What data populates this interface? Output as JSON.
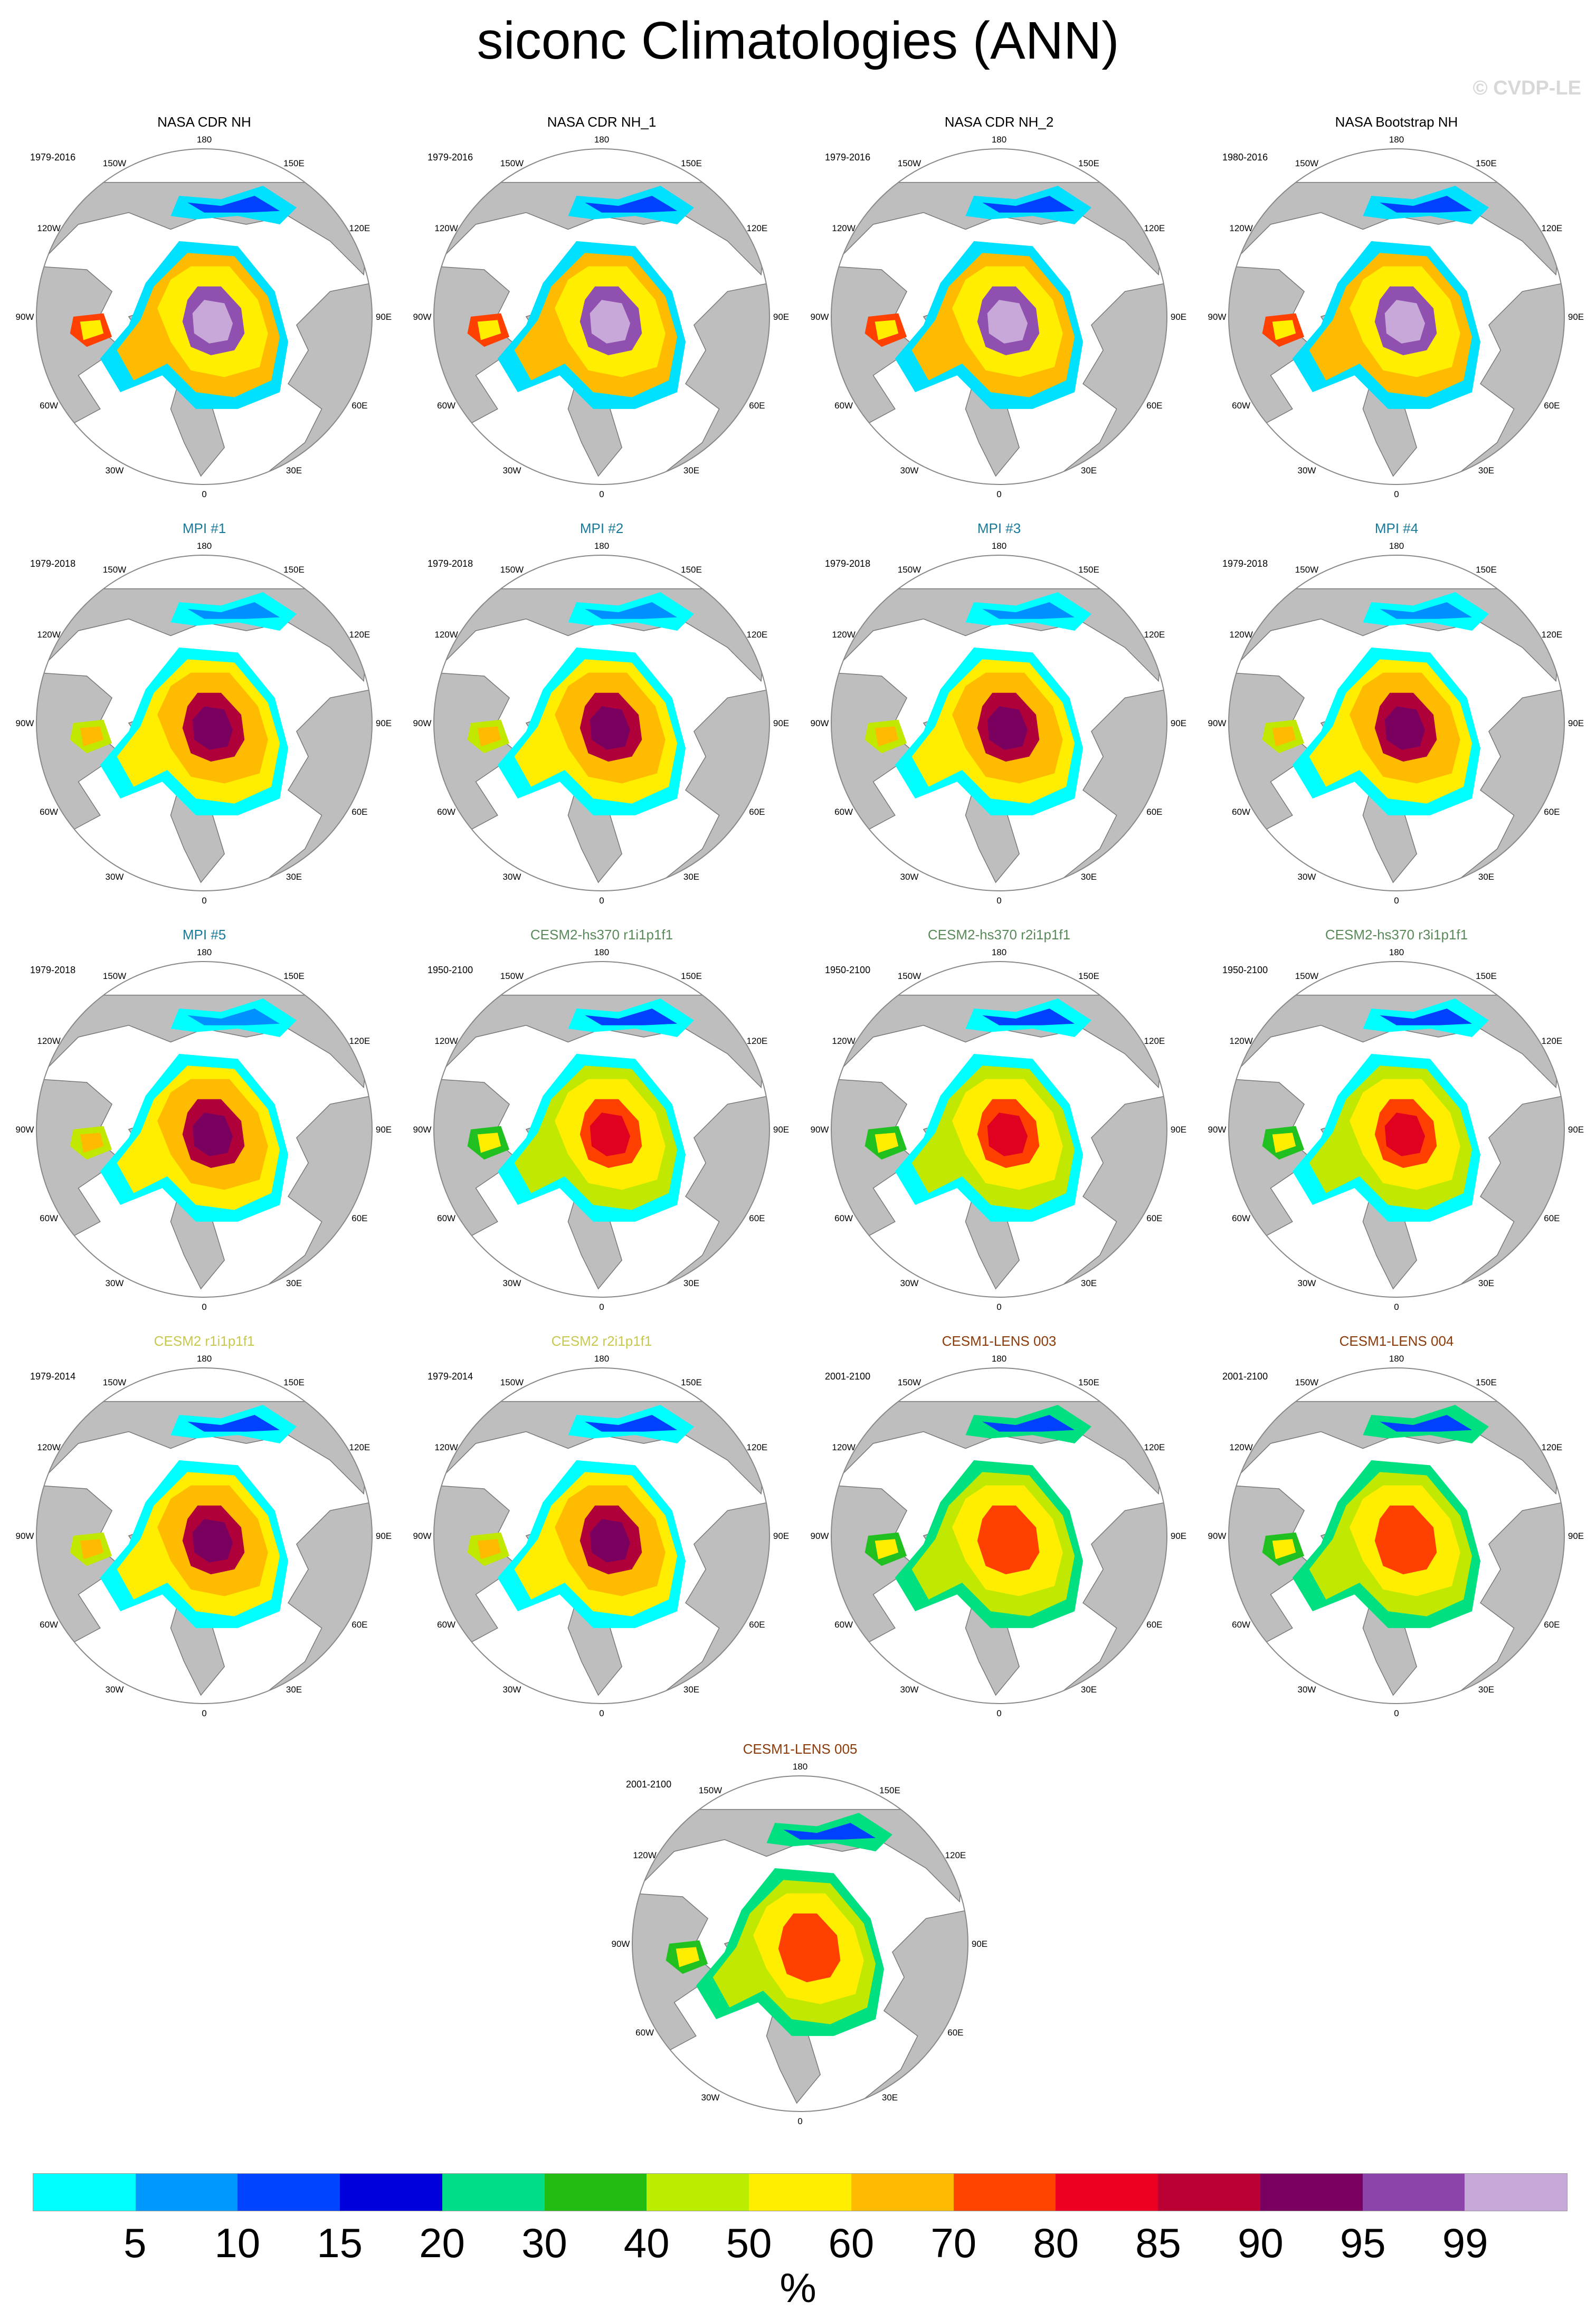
{
  "title": "siconc Climatologies (ANN)",
  "watermark": "© CVDP-LE",
  "map_settings": {
    "projection": "north-polar-stereographic",
    "land_color": "#bebebe",
    "ocean_color": "#ffffff",
    "lon_labels": [
      "180",
      "150E",
      "120E",
      "90E",
      "60E",
      "30E",
      "0",
      "30W",
      "60W",
      "90W",
      "120W",
      "150W"
    ]
  },
  "panels": [
    {
      "title": "NASA CDR NH",
      "title_color": "#000000",
      "years": "1979-2016",
      "group": "obs"
    },
    {
      "title": "NASA CDR NH_1",
      "title_color": "#000000",
      "years": "1979-2016",
      "group": "obs"
    },
    {
      "title": "NASA CDR NH_2",
      "title_color": "#000000",
      "years": "1979-2016",
      "group": "obs"
    },
    {
      "title": "NASA Bootstrap NH",
      "title_color": "#000000",
      "years": "1980-2016",
      "group": "obs"
    },
    {
      "title": "MPI #1",
      "title_color": "#1a7a9a",
      "years": "1979-2018",
      "group": "mpi"
    },
    {
      "title": "MPI #2",
      "title_color": "#1a7a9a",
      "years": "1979-2018",
      "group": "mpi"
    },
    {
      "title": "MPI #3",
      "title_color": "#1a7a9a",
      "years": "1979-2018",
      "group": "mpi"
    },
    {
      "title": "MPI #4",
      "title_color": "#1a7a9a",
      "years": "1979-2018",
      "group": "mpi"
    },
    {
      "title": "MPI #5",
      "title_color": "#1a7a9a",
      "years": "1979-2018",
      "group": "mpi"
    },
    {
      "title": "CESM2-hs370 r1i1p1f1",
      "title_color": "#5a8a5a",
      "years": "1950-2100",
      "group": "cesm2hs"
    },
    {
      "title": "CESM2-hs370 r2i1p1f1",
      "title_color": "#5a8a5a",
      "years": "1950-2100",
      "group": "cesm2hs"
    },
    {
      "title": "CESM2-hs370 r3i1p1f1",
      "title_color": "#5a8a5a",
      "years": "1950-2100",
      "group": "cesm2hs"
    },
    {
      "title": "CESM2 r1i1p1f1",
      "title_color": "#c8c850",
      "years": "1979-2014",
      "group": "cesm2"
    },
    {
      "title": "CESM2 r2i1p1f1",
      "title_color": "#c8c850",
      "years": "1979-2014",
      "group": "cesm2"
    },
    {
      "title": "CESM1-LENS 003",
      "title_color": "#8b3a0a",
      "years": "2001-2100",
      "group": "lens"
    },
    {
      "title": "CESM1-LENS 004",
      "title_color": "#8b3a0a",
      "years": "2001-2100",
      "group": "lens"
    },
    {
      "title": "CESM1-LENS 005",
      "title_color": "#8b3a0a",
      "years": "2001-2100",
      "group": "lens"
    }
  ],
  "ice_patterns": {
    "obs": {
      "center": "#c8a8d8",
      "core": "#9050b0",
      "rim": "#7a0060",
      "edge": [
        "#ffee00",
        "#ffbb00",
        "#ff4000",
        "#00e0ff",
        "#0040ff"
      ]
    },
    "mpi": {
      "center": "#7a0060",
      "core": "#b0003a",
      "rim": "#e00020",
      "edge": [
        "#ffbb00",
        "#ffee00",
        "#c0e800",
        "#00ffff",
        "#0090ff"
      ]
    },
    "cesm2hs": {
      "center": "#e00020",
      "core": "#ff4000",
      "rim": "#ffbb00",
      "edge": [
        "#ffee00",
        "#c0e800",
        "#20c020",
        "#00ffff",
        "#0040ff"
      ]
    },
    "cesm2": {
      "center": "#7a0060",
      "core": "#b0003a",
      "rim": "#ff4000",
      "edge": [
        "#ffbb00",
        "#ffee00",
        "#c0e800",
        "#00ffff",
        "#0040ff"
      ]
    },
    "lens": {
      "center": "#ff4000",
      "core": "#ff4000",
      "rim": "#ffbb00",
      "edge": [
        "#ffee00",
        "#c0e800",
        "#20c020",
        "#00e080",
        "#0040ff"
      ]
    }
  },
  "colorbar": {
    "colors": [
      "#00ffff",
      "#0099ff",
      "#0044ff",
      "#0000dd",
      "#00dd88",
      "#22bb11",
      "#bbee00",
      "#ffee00",
      "#ffbb00",
      "#ff4400",
      "#ee0022",
      "#bb0033",
      "#7a0060",
      "#8a44aa",
      "#c8a8d8"
    ],
    "labels": [
      "5",
      "10",
      "15",
      "20",
      "30",
      "40",
      "50",
      "60",
      "70",
      "80",
      "85",
      "90",
      "95",
      "99"
    ],
    "units": "%"
  }
}
